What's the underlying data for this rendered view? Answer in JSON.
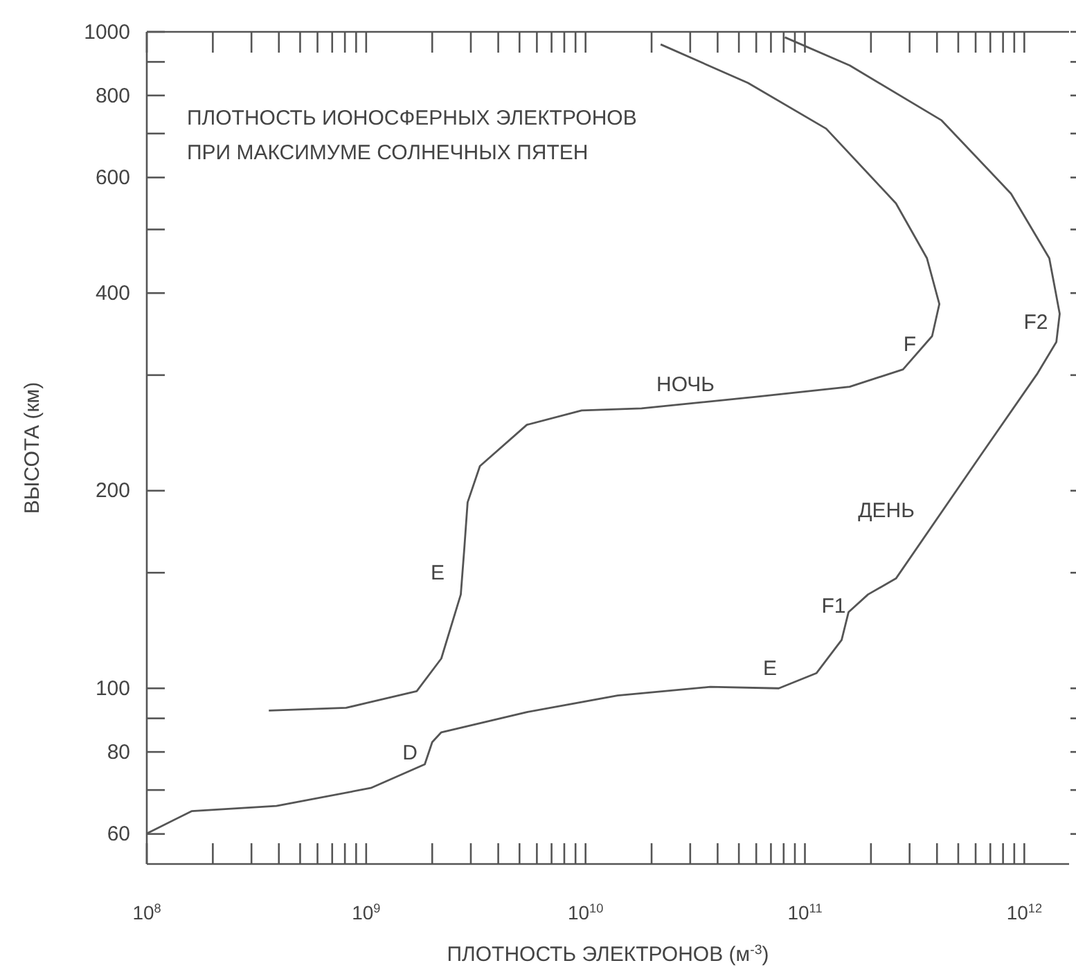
{
  "chart_data": {
    "type": "line",
    "title": "ПЛОТНОСТЬ ИОНОСФЕРНЫХ ЭЛЕКТРОНОВ\nПРИ МАКСИМУМЕ СОЛНЕЧНЫХ ПЯТЕН",
    "xlabel": "ПЛОТНОСТЬ ЭЛЕКТРОНОВ (м$^{-3}$)",
    "ylabel": "ВЫСОТА (км)",
    "log": "xy",
    "grid": false,
    "marker": "none",
    "line_style": "solid",
    "xlim": [
      100000000,
      1600000000000
    ],
    "ylim": [
      54,
      1000
    ],
    "xticks": [
      {
        "value": 100000000,
        "label": "10$^{8}$"
      },
      {
        "value": 200000000,
        "label": null
      },
      {
        "value": 300000000,
        "label": null
      },
      {
        "value": 400000000,
        "label": null
      },
      {
        "value": 500000000,
        "label": null
      },
      {
        "value": 600000000,
        "label": null
      },
      {
        "value": 700000000,
        "label": null
      },
      {
        "value": 800000000,
        "label": null
      },
      {
        "value": 900000000,
        "label": null
      },
      {
        "value": 1000000000,
        "label": "10$^{9}$"
      },
      {
        "value": 2000000000,
        "label": null
      },
      {
        "value": 3000000000,
        "label": null
      },
      {
        "value": 4000000000,
        "label": null
      },
      {
        "value": 5000000000,
        "label": null
      },
      {
        "value": 6000000000,
        "label": null
      },
      {
        "value": 7000000000,
        "label": null
      },
      {
        "value": 8000000000,
        "label": null
      },
      {
        "value": 9000000000,
        "label": null
      },
      {
        "value": 10000000000,
        "label": "10$^{10}$"
      },
      {
        "value": 20000000000,
        "label": null
      },
      {
        "value": 30000000000,
        "label": null
      },
      {
        "value": 40000000000,
        "label": null
      },
      {
        "value": 50000000000,
        "label": null
      },
      {
        "value": 60000000000,
        "label": null
      },
      {
        "value": 70000000000,
        "label": null
      },
      {
        "value": 80000000000,
        "label": null
      },
      {
        "value": 90000000000,
        "label": null
      },
      {
        "value": 100000000000,
        "label": "10$^{11}$"
      },
      {
        "value": 200000000000,
        "label": null
      },
      {
        "value": 300000000000,
        "label": null
      },
      {
        "value": 400000000000,
        "label": null
      },
      {
        "value": 500000000000,
        "label": null
      },
      {
        "value": 600000000000,
        "label": null
      },
      {
        "value": 700000000000,
        "label": null
      },
      {
        "value": 800000000000,
        "label": null
      },
      {
        "value": 900000000000,
        "label": null
      },
      {
        "value": 1000000000000,
        "label": "10$^{12}$"
      }
    ],
    "yticks": [
      60,
      {
        "value": 70,
        "label": null
      },
      80,
      {
        "value": 90,
        "label": null
      },
      100,
      {
        "value": 150,
        "label": null
      },
      200,
      {
        "value": 300,
        "label": null
      },
      400,
      {
        "value": 500,
        "label": null
      },
      600,
      {
        "value": 700,
        "label": null
      },
      800,
      {
        "value": 900,
        "label": null
      },
      1000
    ],
    "series": [
      {
        "color": "#555555",
        "x": [
          360000000,
          810000000,
          1700000000,
          2200000000,
          2700000000,
          2800000000,
          2900000000,
          3300000000,
          5400000000,
          9600000000,
          18000000000,
          60000000000,
          160000000000,
          280000000000,
          380000000000,
          410000000000,
          360000000000,
          260000000000,
          125000000000,
          55000000000,
          22000000000
        ],
        "values": [
          92.5,
          93.4,
          99,
          111,
          139,
          163,
          192,
          218,
          252,
          265,
          267,
          278,
          288,
          306,
          344,
          385,
          452,
          548,
          712,
          836,
          957
        ]
      },
      {
        "color": "#555555",
        "x": [
          100000000,
          160000000,
          390000000,
          1050000000,
          1850000000,
          2000000000,
          2200000000,
          5400000000,
          14000000000,
          37000000000,
          76000000000,
          113000000000,
          147000000000,
          158000000000,
          194000000000,
          260000000000,
          630000000000,
          1150000000000,
          1400000000000,
          1450000000000,
          1300000000000,
          870000000000,
          420000000000,
          160000000000,
          81000000000
        ],
        "values": [
          60.1,
          65,
          66.2,
          70.5,
          76.6,
          82.8,
          85.7,
          92,
          97.5,
          100.5,
          100,
          105.5,
          118.5,
          130.6,
          139,
          147,
          226,
          302,
          337,
          372,
          452,
          567,
          733,
          889,
          981
        ]
      }
    ],
    "annotations": [
      "НОЧЬ",
      "F",
      "F2",
      "ДЕНЬ",
      "F1",
      "E",
      "D",
      "E"
    ]
  }
}
